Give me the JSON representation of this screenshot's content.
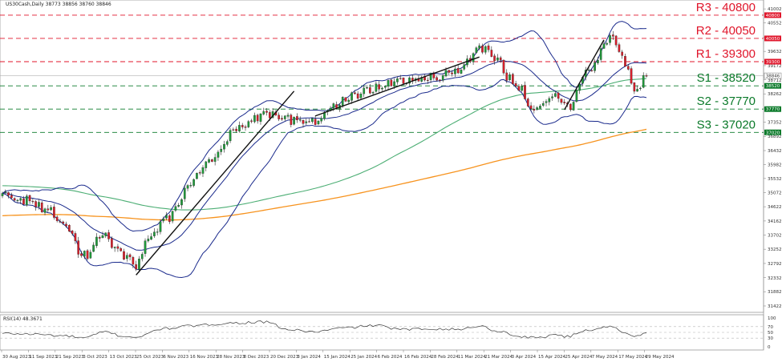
{
  "chart_data": {
    "type": "candlestick",
    "title": "US30Cash,Daily  38773 38856 38760 38846",
    "ylim": [
      31422,
      41082
    ],
    "y_ticks": [
      41002,
      40552,
      40092,
      39632,
      39172,
      38712,
      38262,
      37802,
      37352,
      36892,
      36432,
      35982,
      35532,
      35072,
      34622,
      34162,
      33702,
      33252,
      32792,
      32332,
      31882,
      31422
    ],
    "x_labels": [
      "30 Aug 2023",
      "11 Sep 2023",
      "21 Sep 2023",
      "3 Oct 2023",
      "13 Oct 2023",
      "25 Oct 2023",
      "6 Nov 2023",
      "16 Nov 2023",
      "28 Nov 2023",
      "8 Dec 2023",
      "20 Dec 2023",
      "3 Jan 2024",
      "15 Jan 2024",
      "25 Jan 2024",
      "6 Feb 2024",
      "16 Feb 2024",
      "28 Feb 2024",
      "11 Mar 2024",
      "21 Mar 2024",
      "3 Apr 2024",
      "15 Apr 2024",
      "25 Apr 2024",
      "7 May 2024",
      "17 May 2024",
      "29 May 2024"
    ],
    "current_price": 38846,
    "levels": [
      {
        "label": "R3 - 40800",
        "value": 40800,
        "tag": "40800",
        "color": "#e0162b"
      },
      {
        "label": "R2 - 40050",
        "value": 40050,
        "tag": "40050",
        "color": "#e0162b"
      },
      {
        "label": "R1 - 39300",
        "value": 39300,
        "tag": "39300",
        "color": "#e0162b"
      },
      {
        "label": "S1 - 38520",
        "value": 38520,
        "tag": "38520",
        "color": "#0b7a2a"
      },
      {
        "label": "S2 - 37770",
        "value": 37770,
        "tag": "37770",
        "color": "#0b7a2a"
      },
      {
        "label": "S3 - 37020",
        "value": 37020,
        "tag": "37020",
        "color": "#0b7a2a"
      }
    ],
    "price_tag": "38846",
    "colors": {
      "up": "#1f9a3a",
      "down": "#d81e2a",
      "bollinger": "#1a2a8c",
      "ma100": "#4cae74",
      "ma200": "#f7931e",
      "trend": "#111111"
    },
    "anchors": [
      {
        "i": 0,
        "v": 35050
      },
      {
        "i": 8,
        "v": 34800
      },
      {
        "i": 14,
        "v": 34550
      },
      {
        "i": 20,
        "v": 34000
      },
      {
        "i": 27,
        "v": 33000
      },
      {
        "i": 33,
        "v": 33750
      },
      {
        "i": 38,
        "v": 33250
      },
      {
        "i": 44,
        "v": 32700
      },
      {
        "i": 48,
        "v": 33650
      },
      {
        "i": 55,
        "v": 34300
      },
      {
        "i": 62,
        "v": 35400
      },
      {
        "i": 70,
        "v": 36300
      },
      {
        "i": 78,
        "v": 37200
      },
      {
        "i": 86,
        "v": 37650
      },
      {
        "i": 95,
        "v": 37450
      },
      {
        "i": 103,
        "v": 37400
      },
      {
        "i": 110,
        "v": 37950
      },
      {
        "i": 120,
        "v": 38350
      },
      {
        "i": 130,
        "v": 38700
      },
      {
        "i": 140,
        "v": 38750
      },
      {
        "i": 150,
        "v": 39000
      },
      {
        "i": 157,
        "v": 39800
      },
      {
        "i": 162,
        "v": 39450
      },
      {
        "i": 168,
        "v": 38650
      },
      {
        "i": 175,
        "v": 37800
      },
      {
        "i": 181,
        "v": 38200
      },
      {
        "i": 186,
        "v": 37850
      },
      {
        "i": 193,
        "v": 39050
      },
      {
        "i": 200,
        "v": 40050
      },
      {
        "i": 205,
        "v": 39250
      },
      {
        "i": 208,
        "v": 38400
      },
      {
        "i": 212,
        "v": 38846
      }
    ],
    "trendlines": [
      {
        "from": [
          44,
          32420
        ],
        "to": [
          96,
          38350
        ]
      },
      {
        "from": [
          103,
          37550
        ],
        "to": [
          157,
          39450
        ]
      },
      {
        "from": [
          185,
          37750
        ],
        "to": [
          198,
          40000
        ]
      }
    ],
    "rsi": {
      "label": "RSI(14) 48.3671",
      "ylim": [
        0,
        100
      ],
      "ticks": [
        100,
        70,
        50,
        30,
        0
      ],
      "anchors": [
        {
          "i": 0,
          "v": 46
        },
        {
          "i": 10,
          "v": 44
        },
        {
          "i": 20,
          "v": 38
        },
        {
          "i": 27,
          "v": 31
        },
        {
          "i": 34,
          "v": 52
        },
        {
          "i": 40,
          "v": 36
        },
        {
          "i": 45,
          "v": 34
        },
        {
          "i": 52,
          "v": 62
        },
        {
          "i": 62,
          "v": 72
        },
        {
          "i": 75,
          "v": 82
        },
        {
          "i": 86,
          "v": 86
        },
        {
          "i": 95,
          "v": 58
        },
        {
          "i": 103,
          "v": 52
        },
        {
          "i": 112,
          "v": 65
        },
        {
          "i": 122,
          "v": 74
        },
        {
          "i": 132,
          "v": 60
        },
        {
          "i": 142,
          "v": 63
        },
        {
          "i": 150,
          "v": 60
        },
        {
          "i": 157,
          "v": 72
        },
        {
          "i": 163,
          "v": 55
        },
        {
          "i": 170,
          "v": 36
        },
        {
          "i": 176,
          "v": 31
        },
        {
          "i": 182,
          "v": 43
        },
        {
          "i": 186,
          "v": 35
        },
        {
          "i": 192,
          "v": 57
        },
        {
          "i": 199,
          "v": 70
        },
        {
          "i": 202,
          "v": 64
        },
        {
          "i": 206,
          "v": 41
        },
        {
          "i": 209,
          "v": 36
        },
        {
          "i": 212,
          "v": 48
        }
      ]
    }
  }
}
